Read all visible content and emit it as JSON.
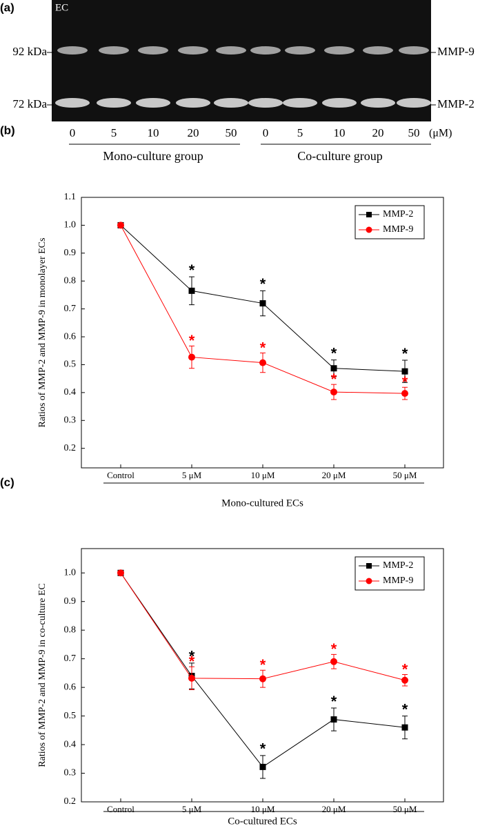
{
  "gel": {
    "panel": "(a)",
    "sample": "EC",
    "markers": [
      "92 kDa",
      "72 kDa"
    ],
    "bands": [
      "MMP-9",
      "MMP-2"
    ],
    "lanes": [
      "0",
      "5",
      "10",
      "20",
      "50",
      "0",
      "5",
      "10",
      "20",
      "50"
    ],
    "unit": "(μM)",
    "groups": [
      "Mono-culture group",
      "Co-culture group"
    ]
  },
  "chart_data": [
    {
      "type": "line",
      "panel": "(b)",
      "ylabel": "Ratios of MMP-2 and MMP-9 in monolayer ECs",
      "xlabel": "Mono-cultured ECs",
      "categories": [
        "Control",
        "5 μM",
        "10 μM",
        "20 μM",
        "50 μM"
      ],
      "series": [
        {
          "name": "MMP-2",
          "color": "#000000",
          "marker": "square",
          "values": [
            1.0,
            0.765,
            0.72,
            0.487,
            0.476
          ],
          "errors": [
            0,
            0.05,
            0.045,
            0.03,
            0.04
          ],
          "markers": [
            null,
            "*",
            "*",
            "*",
            "*"
          ]
        },
        {
          "name": "MMP-9",
          "color": "#ff0000",
          "marker": "circle",
          "values": [
            1.0,
            0.527,
            0.507,
            0.402,
            0.397
          ],
          "errors": [
            0,
            0.04,
            0.035,
            0.027,
            0.022
          ],
          "markers": [
            null,
            "*",
            "*",
            "*",
            "*"
          ]
        }
      ],
      "ylim": [
        0.13,
        1.1
      ],
      "yticks": [
        0.2,
        0.3,
        0.4,
        0.5,
        0.6,
        0.7,
        0.8,
        0.9,
        {
          "value": 1,
          "label": "1.0"
        },
        1.1
      ],
      "legend": "upper right"
    },
    {
      "type": "line",
      "panel": "(c)",
      "ylabel": "Ratios of MMP-2 and MMP-9 in co-culture EC",
      "xlabel": "Co-cultured ECs",
      "categories": [
        "Control",
        "5 μM",
        "10 μM",
        "20 μM",
        "50 μM"
      ],
      "series": [
        {
          "name": "MMP-2",
          "color": "#000000",
          "marker": "square",
          "values": [
            1.0,
            0.64,
            0.322,
            0.488,
            0.46
          ],
          "errors": [
            0,
            0.045,
            0.04,
            0.04,
            0.04
          ],
          "markers": [
            null,
            "*",
            "*",
            "*",
            "*"
          ]
        },
        {
          "name": "MMP-9",
          "color": "#ff0000",
          "marker": "circle",
          "values": [
            1.0,
            0.632,
            0.63,
            0.69,
            0.625
          ],
          "errors": [
            0,
            0.04,
            0.03,
            0.025,
            0.02
          ],
          "markers": [
            null,
            "*",
            "*",
            "*",
            "*"
          ]
        }
      ],
      "ylim": [
        0.2,
        1.085
      ],
      "yticks": [
        0.2,
        0.3,
        0.4,
        0.5,
        0.6,
        0.7,
        0.8,
        0.9,
        {
          "value": 1,
          "label": "1.0"
        }
      ],
      "legend": "upper right"
    }
  ]
}
